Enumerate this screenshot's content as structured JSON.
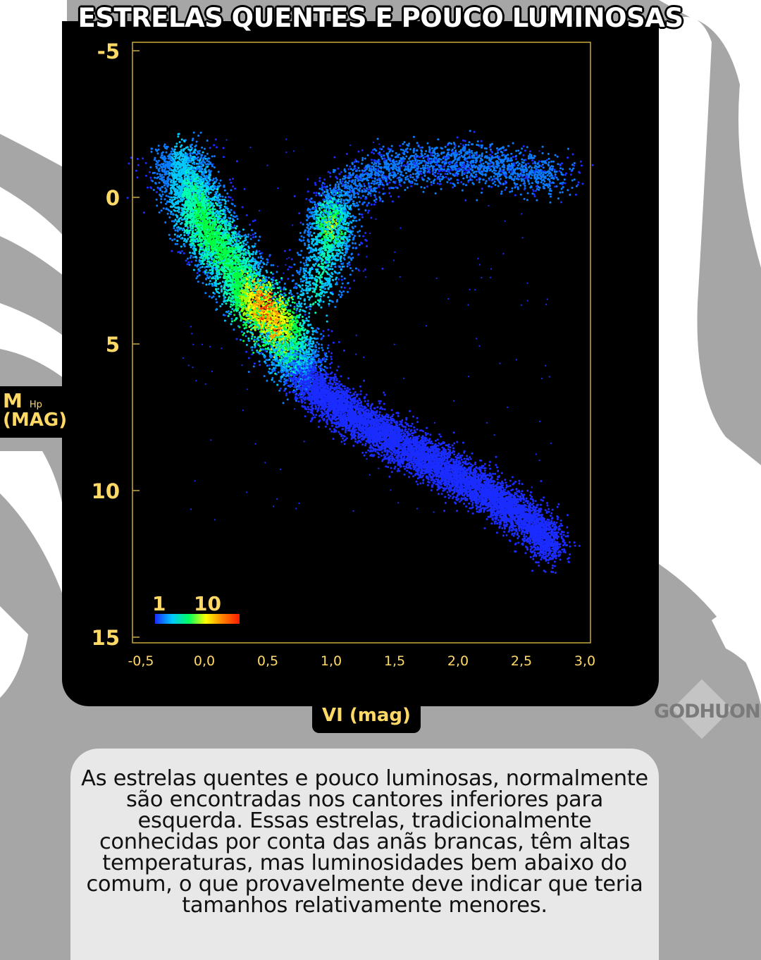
{
  "title": "ESTRELAS QUENTES E POUCO LUMINOSAS",
  "y_axis": {
    "label_main": "M",
    "label_sub": "Hp",
    "label_unit": "(MAG)"
  },
  "x_axis": {
    "label": "VI (mag)"
  },
  "logo": {
    "text": "GODHUOND"
  },
  "paragraph": "As estrelas quentes e pouco luminosas, normalmente são encontradas nos cantores inferiores para esquerda. Essas estrelas, tradicionalmente conhecidas por conta das anãs brancas, têm altas temperaturas, mas luminosidades bem abaixo do comum, o que provavelmente deve indicar que teria tamanhos relativamente menores.",
  "colors": {
    "panel": "#000000",
    "accent": "#ffd966",
    "background": "#a6a6a6",
    "textbox": "#e8e8e8"
  },
  "chart_data": {
    "type": "heatmap",
    "title": "",
    "xlabel": "VI (mag)",
    "ylabel": "M Hp (MAG)",
    "xlim": [
      -0.5,
      3.0
    ],
    "ylim": [
      15,
      -5
    ],
    "x_ticks": [
      {
        "value": -0.5,
        "label": "-0,5"
      },
      {
        "value": 0.0,
        "label": "0,0"
      },
      {
        "value": 0.5,
        "label": "0,5"
      },
      {
        "value": 1.0,
        "label": "1,0"
      },
      {
        "value": 1.5,
        "label": "1,5"
      },
      {
        "value": 2.0,
        "label": "2,0"
      },
      {
        "value": 2.5,
        "label": "2,5"
      },
      {
        "value": 3.0,
        "label": "3,0"
      }
    ],
    "y_ticks": [
      {
        "value": -5,
        "label": "-5"
      },
      {
        "value": 0,
        "label": "0"
      },
      {
        "value": 5,
        "label": "5"
      },
      {
        "value": 10,
        "label": "10"
      },
      {
        "value": 15,
        "label": "15"
      }
    ],
    "colorbar": {
      "min_label": "1",
      "max_label": "10",
      "colors": [
        "#1a2cff",
        "#00c8ff",
        "#00ff60",
        "#ffff00",
        "#ff8000",
        "#ff1a00"
      ]
    },
    "density_ridges": [
      {
        "name": "main sequence",
        "points": [
          [
            -0.2,
            -1.5
          ],
          [
            0.0,
            1.0
          ],
          [
            0.2,
            2.3
          ],
          [
            0.4,
            3.5
          ],
          [
            0.55,
            4.3
          ],
          [
            0.65,
            5.0
          ],
          [
            0.8,
            6.3
          ],
          [
            1.0,
            7.0
          ],
          [
            1.3,
            7.8
          ],
          [
            1.7,
            8.8
          ],
          [
            2.2,
            10.0
          ],
          [
            2.6,
            11.2
          ],
          [
            2.75,
            12.0
          ]
        ]
      },
      {
        "name": "red clump",
        "points": [
          [
            1.0,
            1.0
          ]
        ]
      },
      {
        "name": "giant branch",
        "points": [
          [
            0.85,
            3.6
          ],
          [
            0.95,
            2.2
          ],
          [
            1.0,
            1.0
          ],
          [
            1.1,
            -0.2
          ],
          [
            1.4,
            -1.0
          ],
          [
            2.0,
            -1.2
          ],
          [
            2.8,
            -0.7
          ]
        ]
      }
    ],
    "grid": false
  }
}
